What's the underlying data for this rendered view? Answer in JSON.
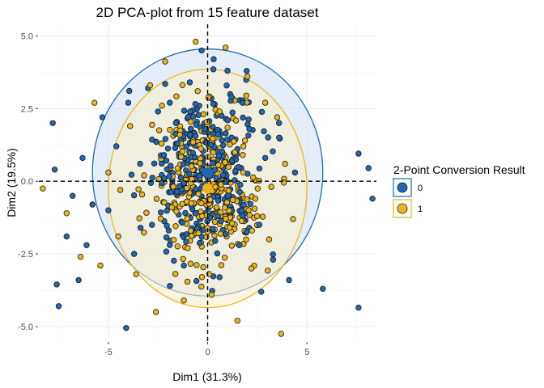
{
  "chart_data": {
    "type": "scatter",
    "title": "2D PCA-plot from 15 feature dataset",
    "xlabel": "Dim1 (31.3%)",
    "ylabel": "Dim2 (19.5%)",
    "xlim": [
      -8.5,
      8.5
    ],
    "ylim": [
      -5.5,
      5.4
    ],
    "x_ticks": [
      -5,
      0,
      5
    ],
    "y_ticks": [
      -5.0,
      -2.5,
      0.0,
      2.5,
      5.0
    ],
    "x_tick_labels": [
      "-5",
      "0",
      "5"
    ],
    "y_tick_labels": [
      "-5.0",
      "-2.5",
      "0.0",
      "2.5",
      "5.0"
    ],
    "grid": true,
    "reference_lines": {
      "x": 0,
      "y": 0,
      "style": "dashed"
    },
    "legend": {
      "title": "2-Point Conversion Result",
      "position": "right",
      "entries": [
        {
          "label": "0",
          "color": "#1f68b4"
        },
        {
          "label": "1",
          "color": "#ebb51c"
        }
      ]
    },
    "series": [
      {
        "name": "0",
        "color": "#1f68b4",
        "fill_color": "#cfe0f2",
        "centroid": [
          0.0,
          0.3
        ],
        "ellipse": {
          "center": [
            0.0,
            0.3
          ],
          "rx": 5.8,
          "ry": 4.25
        },
        "outliers": [
          [
            -7.8,
            2.0
          ],
          [
            -7.7,
            0.4
          ],
          [
            -7.5,
            -4.3
          ],
          [
            -7.6,
            -3.55
          ],
          [
            -6.5,
            -3.4
          ],
          [
            -6.3,
            0.8
          ],
          [
            -6.8,
            -0.5
          ],
          [
            -7.1,
            -1.9
          ],
          [
            -6.1,
            -2.2
          ],
          [
            -5.8,
            -0.8
          ],
          [
            -5.3,
            2.2
          ],
          [
            -5.0,
            -1.0
          ],
          [
            -4.6,
            1.2
          ],
          [
            -4.1,
            -5.05
          ],
          [
            -3.7,
            -2.5
          ],
          [
            -3.4,
            0.6
          ],
          [
            -3.0,
            3.2
          ],
          [
            -2.8,
            -1.5
          ],
          [
            -2.5,
            2.4
          ],
          [
            -2.2,
            0.9
          ],
          [
            -1.9,
            -3.6
          ],
          [
            -1.6,
            2.0
          ],
          [
            -1.2,
            -2.9
          ],
          [
            -0.9,
            3.4
          ],
          [
            -0.6,
            -1.1
          ],
          [
            -0.3,
            4.5
          ],
          [
            0.3,
            4.2
          ],
          [
            0.6,
            -3.3
          ],
          [
            1.2,
            2.9
          ],
          [
            1.6,
            -2.2
          ],
          [
            2.1,
            1.8
          ],
          [
            2.6,
            -1.5
          ],
          [
            2.9,
            0.8
          ],
          [
            3.3,
            -2.7
          ],
          [
            3.6,
            1.5
          ],
          [
            4.1,
            -3.4
          ],
          [
            4.4,
            0.3
          ],
          [
            5.8,
            -3.7
          ],
          [
            7.6,
            0.95
          ],
          [
            8.1,
            0.45
          ],
          [
            8.3,
            -0.6
          ],
          [
            7.6,
            -4.35
          ],
          [
            2.7,
            -3.8
          ],
          [
            -4.0,
            2.7
          ],
          [
            1.0,
            3.8
          ]
        ]
      },
      {
        "name": "1",
        "color": "#ebb51c",
        "fill_color": "#f6eecd",
        "centroid": [
          0.0,
          -0.25
        ],
        "ellipse": {
          "center": [
            0.0,
            -0.25
          ],
          "rx": 5.0,
          "ry": 4.1
        },
        "outliers": [
          [
            -8.3,
            -0.25
          ],
          [
            -7.1,
            -1.1
          ],
          [
            -6.4,
            -2.6
          ],
          [
            -5.7,
            2.7
          ],
          [
            -5.4,
            -2.9
          ],
          [
            -5.0,
            0.3
          ],
          [
            -4.5,
            -1.9
          ],
          [
            -3.9,
            1.9
          ],
          [
            -3.6,
            -3.2
          ],
          [
            -3.2,
            0.2
          ],
          [
            -2.6,
            -4.5
          ],
          [
            -2.3,
            2.6
          ],
          [
            -1.8,
            -0.9
          ],
          [
            -1.4,
            1.6
          ],
          [
            -1.0,
            -2.3
          ],
          [
            -0.6,
            4.8
          ],
          [
            -0.5,
            3.1
          ],
          [
            0.2,
            -3.9
          ],
          [
            0.6,
            2.4
          ],
          [
            1.1,
            -1.6
          ],
          [
            1.5,
            -4.8
          ],
          [
            1.8,
            1.2
          ],
          [
            2.4,
            -0.6
          ],
          [
            2.9,
            2.7
          ],
          [
            3.1,
            -2.0
          ],
          [
            3.7,
            -5.25
          ],
          [
            3.9,
            0.6
          ],
          [
            4.3,
            -1.3
          ],
          [
            2.2,
            -3.0
          ],
          [
            -2.9,
            3.3
          ],
          [
            0.9,
            4.6
          ],
          [
            -4.4,
            -0.3
          ],
          [
            3.5,
            2.2
          ],
          [
            -1.2,
            -4.1
          ],
          [
            2.0,
            3.6
          ]
        ]
      }
    ]
  }
}
